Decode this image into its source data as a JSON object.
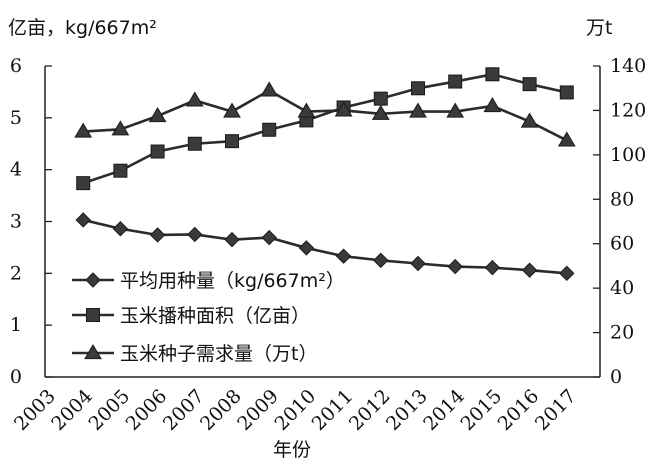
{
  "chart_data": {
    "type": "line",
    "left_axis": {
      "title": "亿亩，kg/667m²",
      "ylim": [
        0,
        6
      ],
      "ticks": [
        "0",
        "1",
        "2",
        "3",
        "4",
        "5",
        "6"
      ]
    },
    "right_axis": {
      "title": "万t",
      "ylim": [
        0,
        140
      ],
      "ticks": [
        "0",
        "20",
        "40",
        "60",
        "80",
        "100",
        "120",
        "140"
      ]
    },
    "x_axis": {
      "title": "年份",
      "tick_labels": [
        "2003",
        "2004",
        "2005",
        "2006",
        "2007",
        "2008",
        "2009",
        "2010",
        "2011",
        "2012",
        "2013",
        "2014",
        "2015",
        "2016",
        "2017"
      ]
    },
    "x": [
      2004,
      2005,
      2006,
      2007,
      2008,
      2009,
      2010,
      2011,
      2012,
      2013,
      2014,
      2015,
      2016,
      2017
    ],
    "series": [
      {
        "name": "平均用种量（kg/667m²）",
        "axis": "left",
        "marker": "diamond",
        "values": [
          3.03,
          2.86,
          2.74,
          2.75,
          2.65,
          2.69,
          2.49,
          2.33,
          2.25,
          2.19,
          2.13,
          2.11,
          2.06,
          2.0
        ]
      },
      {
        "name": "玉米播种面积（亿亩）",
        "axis": "left",
        "marker": "square",
        "values": [
          3.74,
          3.98,
          4.35,
          4.5,
          4.55,
          4.77,
          4.95,
          5.2,
          5.37,
          5.57,
          5.7,
          5.84,
          5.65,
          5.49
        ]
      },
      {
        "name": "玉米种子需求量（万t）",
        "axis": "right",
        "marker": "triangle",
        "values": [
          110.5,
          111.5,
          117.5,
          124.5,
          119.5,
          129.0,
          119.5,
          120.0,
          118.5,
          119.5,
          119.5,
          122.0,
          115.0,
          106.5
        ]
      }
    ],
    "legend_placement": "bottom-left",
    "grid": false
  }
}
